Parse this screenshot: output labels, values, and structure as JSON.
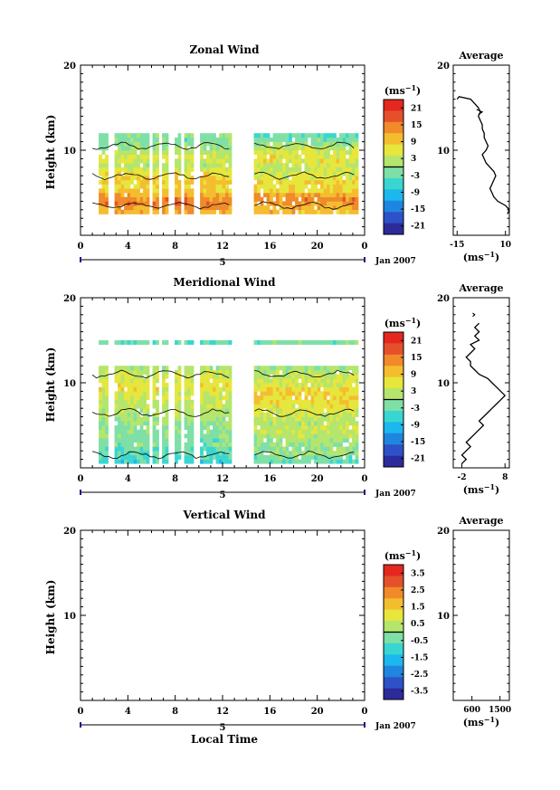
{
  "chart_data": [
    {
      "type": "heatmap",
      "title": "Zonal Wind",
      "ylabel": "Height (km)",
      "ylim": [
        0,
        20
      ],
      "xlim": [
        0,
        24
      ],
      "x_ticks": [
        "0",
        "4",
        "8",
        "12",
        "16",
        "20",
        "0"
      ],
      "y_ticks": [
        "20",
        "10"
      ],
      "day_label": "5",
      "date_label": "Jan 2007",
      "colorbar": {
        "unit": "(ms",
        "unit_exp": "−1",
        "unit_close": ")",
        "ticks": [
          "21",
          "15",
          "9",
          "3",
          "-3",
          "-9",
          "-15",
          "-21"
        ],
        "range": [
          -24,
          24
        ]
      },
      "rows": {
        "heights": [
          2.5,
          3.0,
          3.5,
          4.0,
          4.5,
          5.0,
          5.5,
          6.0,
          6.5,
          7.0,
          7.5,
          8.0,
          8.5,
          9.0,
          9.5,
          10.0,
          10.5,
          11.0,
          11.5
        ],
        "left_values": [
          11,
          13,
          15,
          14,
          11,
          8,
          7,
          9,
          8,
          7,
          5,
          2,
          4,
          5,
          2,
          0,
          -1,
          -2,
          -1
        ],
        "right_values": [
          10,
          11,
          13,
          14,
          12,
          8,
          7,
          7,
          6,
          5,
          4,
          3,
          6,
          6,
          5,
          3,
          0,
          -2,
          -4
        ]
      },
      "data_gaps": [
        [
          1,
          1.5
        ],
        [
          2.1,
          2.7
        ],
        [
          5.6,
          5.9
        ],
        [
          6.5,
          6.8
        ],
        [
          7.4,
          7.8
        ],
        [
          8.4,
          8.6
        ],
        [
          9.5,
          9.9
        ],
        [
          12.7,
          14.6
        ],
        [
          23.4,
          24
        ]
      ],
      "average": {
        "title": "Average",
        "xlabel": "(ms",
        "xlabel_exp": "−1",
        "xlabel_close": ")",
        "x_ticks": [
          "-15",
          "10"
        ],
        "xlim": [
          -17,
          12
        ],
        "y_ticks": [
          "20",
          "10"
        ],
        "profile": [
          [
            11,
            2.5
          ],
          [
            12,
            3
          ],
          [
            10,
            3.5
          ],
          [
            6,
            4
          ],
          [
            4,
            4.5
          ],
          [
            3,
            5
          ],
          [
            2,
            5.5
          ],
          [
            3,
            6
          ],
          [
            4,
            6.5
          ],
          [
            5,
            7
          ],
          [
            4,
            7.5
          ],
          [
            2,
            8
          ],
          [
            0,
            8.5
          ],
          [
            -1,
            9
          ],
          [
            -2,
            9.5
          ],
          [
            0,
            10
          ],
          [
            1,
            10.5
          ],
          [
            0,
            11
          ],
          [
            -1,
            11.5
          ],
          [
            -1,
            12
          ],
          [
            -2,
            12.5
          ],
          [
            -2,
            13
          ],
          [
            -3,
            13.5
          ],
          [
            -4,
            14
          ],
          [
            -3,
            14.5
          ],
          [
            -4,
            15
          ],
          [
            -6,
            15.5
          ],
          [
            -8,
            16
          ],
          [
            -14,
            16.3
          ],
          [
            -15,
            16
          ]
        ],
        "profile_extra": [
          [
            -5,
            14.8
          ],
          [
            -2,
            14.5
          ],
          [
            -4,
            14.2
          ]
        ]
      }
    },
    {
      "type": "heatmap",
      "title": "Meridional Wind",
      "ylabel": "Height (km)",
      "ylim": [
        0,
        20
      ],
      "xlim": [
        0,
        24
      ],
      "x_ticks": [
        "0",
        "4",
        "8",
        "12",
        "16",
        "20",
        "0"
      ],
      "y_ticks": [
        "20",
        "10"
      ],
      "day_label": "5",
      "date_label": "Jan 2007",
      "colorbar": {
        "unit": "(ms",
        "unit_exp": "−1",
        "unit_close": ")",
        "ticks": [
          "21",
          "15",
          "9",
          "3",
          "-3",
          "-9",
          "-15",
          "-21"
        ],
        "range": [
          -24,
          24
        ]
      },
      "rows": {
        "heights": [
          0.5,
          1.0,
          1.5,
          2.0,
          2.5,
          3.0,
          3.5,
          4.0,
          4.5,
          5.0,
          5.5,
          6.0,
          6.5,
          7.0,
          7.5,
          8.0,
          8.5,
          9.0,
          9.5,
          10.0,
          10.5,
          11.0,
          11.5,
          14.5
        ],
        "left_values": [
          -6,
          -5,
          -4,
          -3,
          -2,
          -2,
          -1,
          -1,
          0,
          0,
          1,
          2,
          2,
          3,
          3,
          4,
          5,
          6,
          6,
          5,
          4,
          3,
          2,
          -4
        ],
        "right_values": [
          -3,
          -2,
          0,
          -1,
          0,
          1,
          2,
          3,
          3,
          2,
          3,
          4,
          5,
          6,
          7,
          8,
          8,
          7,
          5,
          4,
          3,
          2,
          1,
          -2
        ]
      },
      "data_gaps": [
        [
          1,
          1.5
        ],
        [
          2.1,
          2.7
        ],
        [
          5.6,
          5.9
        ],
        [
          6.5,
          6.8
        ],
        [
          7.4,
          7.8
        ],
        [
          8.4,
          8.6
        ],
        [
          9.5,
          9.9
        ],
        [
          12.7,
          14.6
        ],
        [
          23.4,
          24
        ]
      ],
      "average": {
        "title": "Average",
        "xlabel": "(ms",
        "xlabel_exp": "−1",
        "xlabel_close": ")",
        "x_ticks": [
          "-2",
          "8"
        ],
        "xlim": [
          -4,
          9
        ],
        "y_ticks": [
          "20",
          "10"
        ],
        "profile": [
          [
            -2,
            0.5
          ],
          [
            -1,
            1
          ],
          [
            -2,
            1.5
          ],
          [
            -1,
            2
          ],
          [
            0,
            2.5
          ],
          [
            -1,
            3
          ],
          [
            0,
            3.5
          ],
          [
            1,
            4
          ],
          [
            2,
            4.5
          ],
          [
            3,
            5
          ],
          [
            2,
            5.5
          ],
          [
            3,
            6
          ],
          [
            4,
            6.5
          ],
          [
            5,
            7
          ],
          [
            6,
            7.5
          ],
          [
            7,
            8
          ],
          [
            8,
            8.5
          ],
          [
            7,
            9
          ],
          [
            6,
            9.5
          ],
          [
            5,
            10
          ],
          [
            4,
            10.5
          ],
          [
            2,
            11
          ],
          [
            1,
            11.5
          ],
          [
            0,
            12
          ],
          [
            0,
            12.5
          ],
          [
            -1,
            13
          ],
          [
            0,
            13.5
          ],
          [
            1,
            14
          ],
          [
            0,
            14.5
          ],
          [
            2,
            15
          ],
          [
            1,
            15.5
          ],
          [
            2,
            16
          ],
          [
            1,
            16.5
          ],
          [
            2,
            17
          ]
        ],
        "profile_extra": [
          [
            0.5,
            17.8
          ],
          [
            1,
            18
          ],
          [
            0.5,
            18.2
          ]
        ]
      }
    },
    {
      "type": "heatmap",
      "title": "Vertical Wind",
      "ylabel": "Height (km)",
      "xlabel": "Local Time",
      "ylim": [
        0,
        20
      ],
      "xlim": [
        0,
        24
      ],
      "x_ticks": [
        "0",
        "4",
        "8",
        "12",
        "16",
        "20",
        "0"
      ],
      "y_ticks": [
        "20",
        "10"
      ],
      "day_label": "5",
      "date_label": "Jan 2007",
      "colorbar": {
        "unit": "(ms",
        "unit_exp": "−1",
        "unit_close": ")",
        "ticks": [
          "3.5",
          "2.5",
          "1.5",
          "0.5",
          "-0.5",
          "-1.5",
          "-2.5",
          "-3.5"
        ],
        "range": [
          -4,
          4
        ]
      },
      "rows": {
        "heights": [],
        "left_values": [],
        "right_values": []
      },
      "data_gaps": [],
      "average": {
        "title": "Average",
        "xlabel": "(ms",
        "xlabel_exp": "−1",
        "xlabel_close": ")",
        "x_ticks": [
          "600",
          "1500"
        ],
        "xlim": [
          0,
          1800
        ],
        "y_ticks": [
          "20",
          "10"
        ],
        "profile": [],
        "profile_extra": []
      }
    }
  ]
}
